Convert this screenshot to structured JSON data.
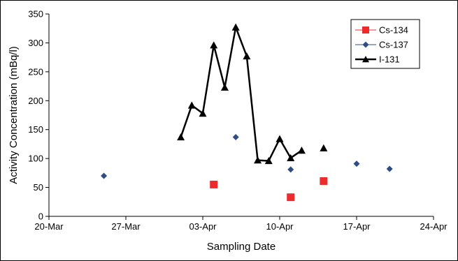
{
  "chart_data": {
    "type": "scatter",
    "title": "",
    "xlabel": "Sampling Date",
    "ylabel": "Activity Concentration (mBq/l)",
    "x_type": "date",
    "xlim": [
      "2011-03-20",
      "2011-04-24"
    ],
    "x_tick_step_days": 7,
    "ylim": [
      0,
      350
    ],
    "y_ticks": [
      0,
      50,
      100,
      150,
      200,
      250,
      300,
      350
    ],
    "grid": false,
    "legend_position": "top-right",
    "series": [
      {
        "name": "Cs-134",
        "marker": "square",
        "color": "#ee2b2b",
        "line": false,
        "points": [
          {
            "x": "2011-04-04",
            "y": 55
          },
          {
            "x": "2011-04-11",
            "y": 33
          },
          {
            "x": "2011-04-14",
            "y": 61
          }
        ]
      },
      {
        "name": "Cs-137",
        "marker": "diamond",
        "color": "#2e4d86",
        "line": false,
        "points": [
          {
            "x": "2011-03-25",
            "y": 70
          },
          {
            "x": "2011-04-06",
            "y": 137
          },
          {
            "x": "2011-04-11",
            "y": 81
          },
          {
            "x": "2011-04-17",
            "y": 91
          },
          {
            "x": "2011-04-20",
            "y": 82
          }
        ]
      },
      {
        "name": "I-131",
        "marker": "triangle",
        "color": "#000000",
        "line": true,
        "points": [
          {
            "x": "2011-04-01",
            "y": 137
          },
          {
            "x": "2011-04-02",
            "y": 192
          },
          {
            "x": "2011-04-03",
            "y": 178
          },
          {
            "x": "2011-04-04",
            "y": 296
          },
          {
            "x": "2011-04-05",
            "y": 223
          },
          {
            "x": "2011-04-06",
            "y": 327
          },
          {
            "x": "2011-04-07",
            "y": 277
          },
          {
            "x": "2011-04-08",
            "y": 97
          },
          {
            "x": "2011-04-09",
            "y": 96
          },
          {
            "x": "2011-04-10",
            "y": 134
          },
          {
            "x": "2011-04-11",
            "y": 101
          },
          {
            "x": "2011-04-12",
            "y": 114
          },
          {
            "x": "2011-04-14",
            "y": 118,
            "connected": false
          }
        ]
      }
    ]
  }
}
